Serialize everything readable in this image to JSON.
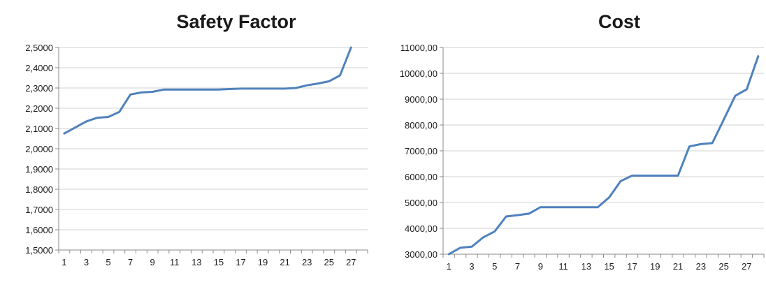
{
  "chart_data": [
    {
      "type": "line",
      "title": "Safety Factor",
      "xlabel": "",
      "ylabel": "",
      "ylim": [
        1.5,
        2.5
      ],
      "yticks": [
        1.5,
        1.6,
        1.7,
        1.8,
        1.9,
        2.0,
        2.1,
        2.2,
        2.3,
        2.4,
        2.5
      ],
      "ytick_labels": [
        "1,5000",
        "1,6000",
        "1,7000",
        "1,8000",
        "1,9000",
        "2,0000",
        "2,1000",
        "2,2000",
        "2,3000",
        "2,4000",
        "2,5000"
      ],
      "xlim": [
        0.5,
        28.5
      ],
      "xticks": [
        1,
        3,
        5,
        7,
        9,
        11,
        13,
        15,
        17,
        19,
        21,
        23,
        25,
        27
      ],
      "xtick_labels": [
        "1",
        "3",
        "5",
        "7",
        "9",
        "11",
        "13",
        "15",
        "17",
        "19",
        "21",
        "23",
        "25",
        "27"
      ],
      "grid": true,
      "x": [
        1,
        2,
        3,
        4,
        5,
        6,
        7,
        8,
        9,
        10,
        11,
        12,
        13,
        14,
        15,
        16,
        17,
        18,
        19,
        20,
        21,
        22,
        23,
        24,
        25,
        26,
        27
      ],
      "series": [
        {
          "color": "#4f81bd",
          "values": [
            2.075,
            2.105,
            2.135,
            2.153,
            2.157,
            2.182,
            2.268,
            2.278,
            2.281,
            2.292,
            2.292,
            2.292,
            2.292,
            2.292,
            2.292,
            2.295,
            2.297,
            2.297,
            2.297,
            2.297,
            2.297,
            2.3,
            2.313,
            2.322,
            2.333,
            2.362,
            2.5
          ]
        }
      ]
    },
    {
      "type": "line",
      "title": "Cost",
      "xlabel": "",
      "ylabel": "",
      "ylim": [
        3000,
        11000
      ],
      "yticks": [
        3000,
        4000,
        5000,
        6000,
        7000,
        8000,
        9000,
        10000,
        11000
      ],
      "ytick_labels": [
        "3000,00",
        "4000,00",
        "5000,00",
        "6000,00",
        "7000,00",
        "8000,00",
        "9000,00",
        "10000,00",
        "11000,00"
      ],
      "xlim": [
        0.5,
        28.5
      ],
      "xticks": [
        1,
        3,
        5,
        7,
        9,
        11,
        13,
        15,
        17,
        19,
        21,
        23,
        25,
        27
      ],
      "xtick_labels": [
        "1",
        "3",
        "5",
        "7",
        "9",
        "11",
        "13",
        "15",
        "17",
        "19",
        "21",
        "23",
        "25",
        "27"
      ],
      "grid": true,
      "x": [
        1,
        2,
        3,
        4,
        5,
        6,
        7,
        8,
        9,
        10,
        11,
        12,
        13,
        14,
        15,
        16,
        17,
        18,
        19,
        20,
        21,
        22,
        23,
        24,
        25,
        26,
        27,
        28
      ],
      "series": [
        {
          "color": "#4f81bd",
          "values": [
            3000,
            3250,
            3290,
            3650,
            3880,
            4460,
            4510,
            4570,
            4820,
            4820,
            4820,
            4820,
            4820,
            4820,
            5200,
            5830,
            6040,
            6040,
            6040,
            6040,
            6040,
            7170,
            7260,
            7300,
            8210,
            9130,
            9380,
            10660
          ]
        }
      ]
    }
  ]
}
